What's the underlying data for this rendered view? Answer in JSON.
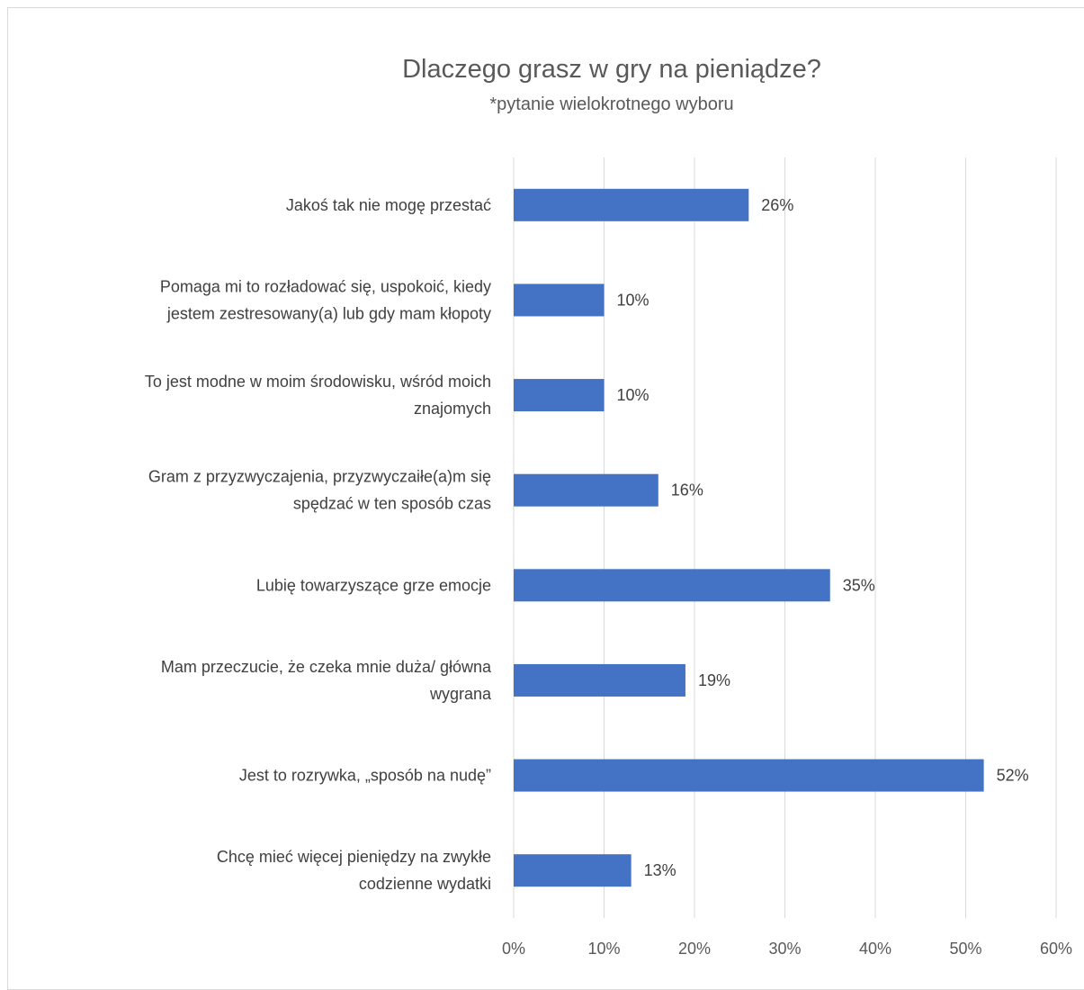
{
  "chart_data": {
    "type": "bar",
    "orientation": "horizontal",
    "title": "Dlaczego grasz w gry na pieniądze?",
    "subtitle": "*pytanie wielokrotnego wyboru",
    "categories": [
      [
        "Jakoś tak nie mogę przestać"
      ],
      [
        "Pomaga mi to rozładować się, uspokoić, kiedy",
        "jestem zestresowany(a) lub gdy mam kłopoty"
      ],
      [
        "To jest modne w moim środowisku, wśród moich",
        "znajomych"
      ],
      [
        "Gram z przyzwyczajenia, przyzwyczaiłe(a)m się",
        "spędzać w ten sposób czas"
      ],
      [
        "Lubię towarzyszące grze emocje"
      ],
      [
        "Mam przeczucie, że czeka mnie duża/ główna",
        "wygrana"
      ],
      [
        "Jest to rozrywka, „sposób na nudę”"
      ],
      [
        "Chcę mieć więcej pieniędzy na zwykłe",
        "codzienne wydatki"
      ]
    ],
    "values": [
      26,
      10,
      10,
      16,
      35,
      19,
      52,
      13
    ],
    "data_labels": [
      "26%",
      "10%",
      "10%",
      "16%",
      "35%",
      "19%",
      "52%",
      "13%"
    ],
    "xlim": [
      0,
      60
    ],
    "ticks": [
      0,
      10,
      20,
      30,
      40,
      50,
      60
    ],
    "tick_labels": [
      "0%",
      "10%",
      "20%",
      "30%",
      "40%",
      "50%",
      "60%"
    ],
    "grid": true,
    "bar_color": "#4472c4",
    "gridline_color": "#d9d9d9"
  }
}
